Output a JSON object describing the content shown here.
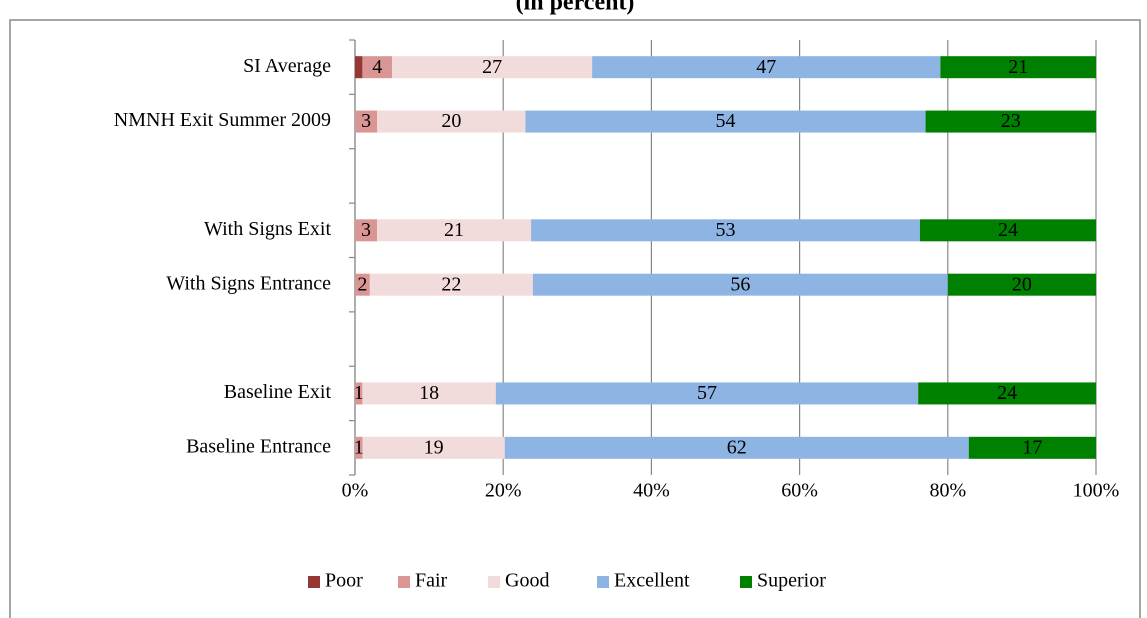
{
  "chart_data": {
    "type": "bar",
    "orientation": "horizontal",
    "stacking": "percent",
    "title": "(in percent)",
    "categories": [
      "SI Average",
      "NMNH Exit Summer 2009",
      null,
      "With Signs Exit",
      "With Signs Entrance",
      null,
      "Baseline Exit",
      "Baseline Entrance"
    ],
    "series": [
      {
        "name": "Poor",
        "color": "#953735",
        "data_labels": false,
        "values": [
          1,
          0,
          null,
          0,
          0,
          null,
          0,
          0
        ]
      },
      {
        "name": "Fair",
        "color": "#d99694",
        "data_labels": true,
        "values": [
          4,
          3,
          null,
          3,
          2,
          null,
          1,
          1
        ]
      },
      {
        "name": "Good",
        "color": "#f2dcdb",
        "data_labels": true,
        "values": [
          27,
          20,
          null,
          21,
          22,
          null,
          18,
          19
        ]
      },
      {
        "name": "Excellent",
        "color": "#8eb4e3",
        "data_labels": true,
        "values": [
          47,
          54,
          null,
          53,
          56,
          null,
          57,
          62
        ]
      },
      {
        "name": "Superior",
        "color": "#008000",
        "data_labels": true,
        "values": [
          21,
          23,
          null,
          24,
          20,
          null,
          24,
          17
        ]
      }
    ],
    "xlim": [
      0,
      100
    ],
    "xticks": [
      {
        "value": 0,
        "label": "0%"
      },
      {
        "value": 20,
        "label": "20%"
      },
      {
        "value": 40,
        "label": "40%"
      },
      {
        "value": 60,
        "label": "60%"
      },
      {
        "value": 80,
        "label": "80%"
      },
      {
        "value": 100,
        "label": "100%"
      }
    ],
    "grid": true,
    "legend": "bottom"
  }
}
